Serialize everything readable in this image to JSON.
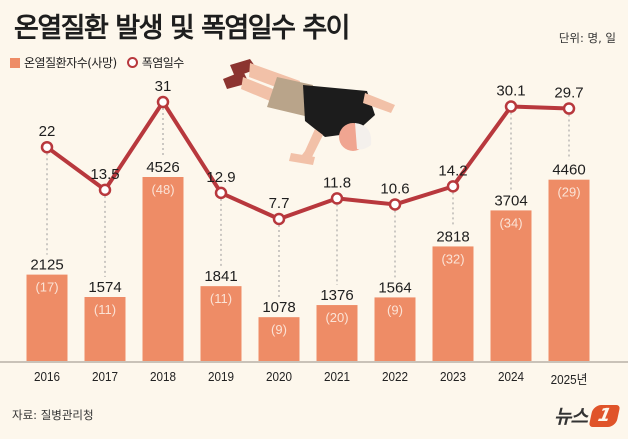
{
  "header": {
    "title": "온열질환 발생 및 폭염일수 추이",
    "unit": "단위: 명, 일"
  },
  "legend": {
    "bars_label": "온열질환자수(사망)",
    "line_label": "폭염일수"
  },
  "colors": {
    "background": "#fdf7ec",
    "bar": "#ee8c66",
    "line": "#b8383d",
    "baseline": "#c9c2b8"
  },
  "footer": {
    "source": "자료: 질병관리청",
    "logo_text": "뉴스",
    "logo_badge": "1"
  },
  "illustration": "person-lying-on-ground-heatstroke",
  "chart_data": {
    "type": "bar+line",
    "title": "온열질환 발생 및 폭염일수 추이",
    "unit": "단위: 명, 일",
    "categories": [
      "2016",
      "2017",
      "2018",
      "2019",
      "2020",
      "2021",
      "2022",
      "2023",
      "2024",
      "2025년"
    ],
    "series": [
      {
        "name": "온열질환자수",
        "type": "bar",
        "values": [
          2125,
          1574,
          4526,
          1841,
          1078,
          1376,
          1564,
          2818,
          3704,
          4460
        ]
      },
      {
        "name": "사망",
        "type": "bar-annotation",
        "values": [
          17,
          11,
          48,
          11,
          9,
          20,
          9,
          32,
          34,
          29
        ],
        "labels": [
          "(17)",
          "(11)",
          "(48)",
          "(11)",
          "(9)",
          "(20)",
          "(9)",
          "(32)",
          "(34)",
          "(29)"
        ]
      },
      {
        "name": "폭염일수",
        "type": "line",
        "values": [
          22,
          13.5,
          31,
          12.9,
          7.7,
          11.8,
          10.6,
          14.2,
          30.1,
          29.7
        ],
        "labels": [
          "22",
          "13.5",
          "31",
          "12.9",
          "7.7",
          "11.8",
          "10.6",
          "14.2",
          "30.1",
          "29.7"
        ]
      }
    ],
    "xlabel": "",
    "ylabel": "",
    "grid": false,
    "legend_position": "top-left",
    "source": "자료: 질병관리청"
  }
}
